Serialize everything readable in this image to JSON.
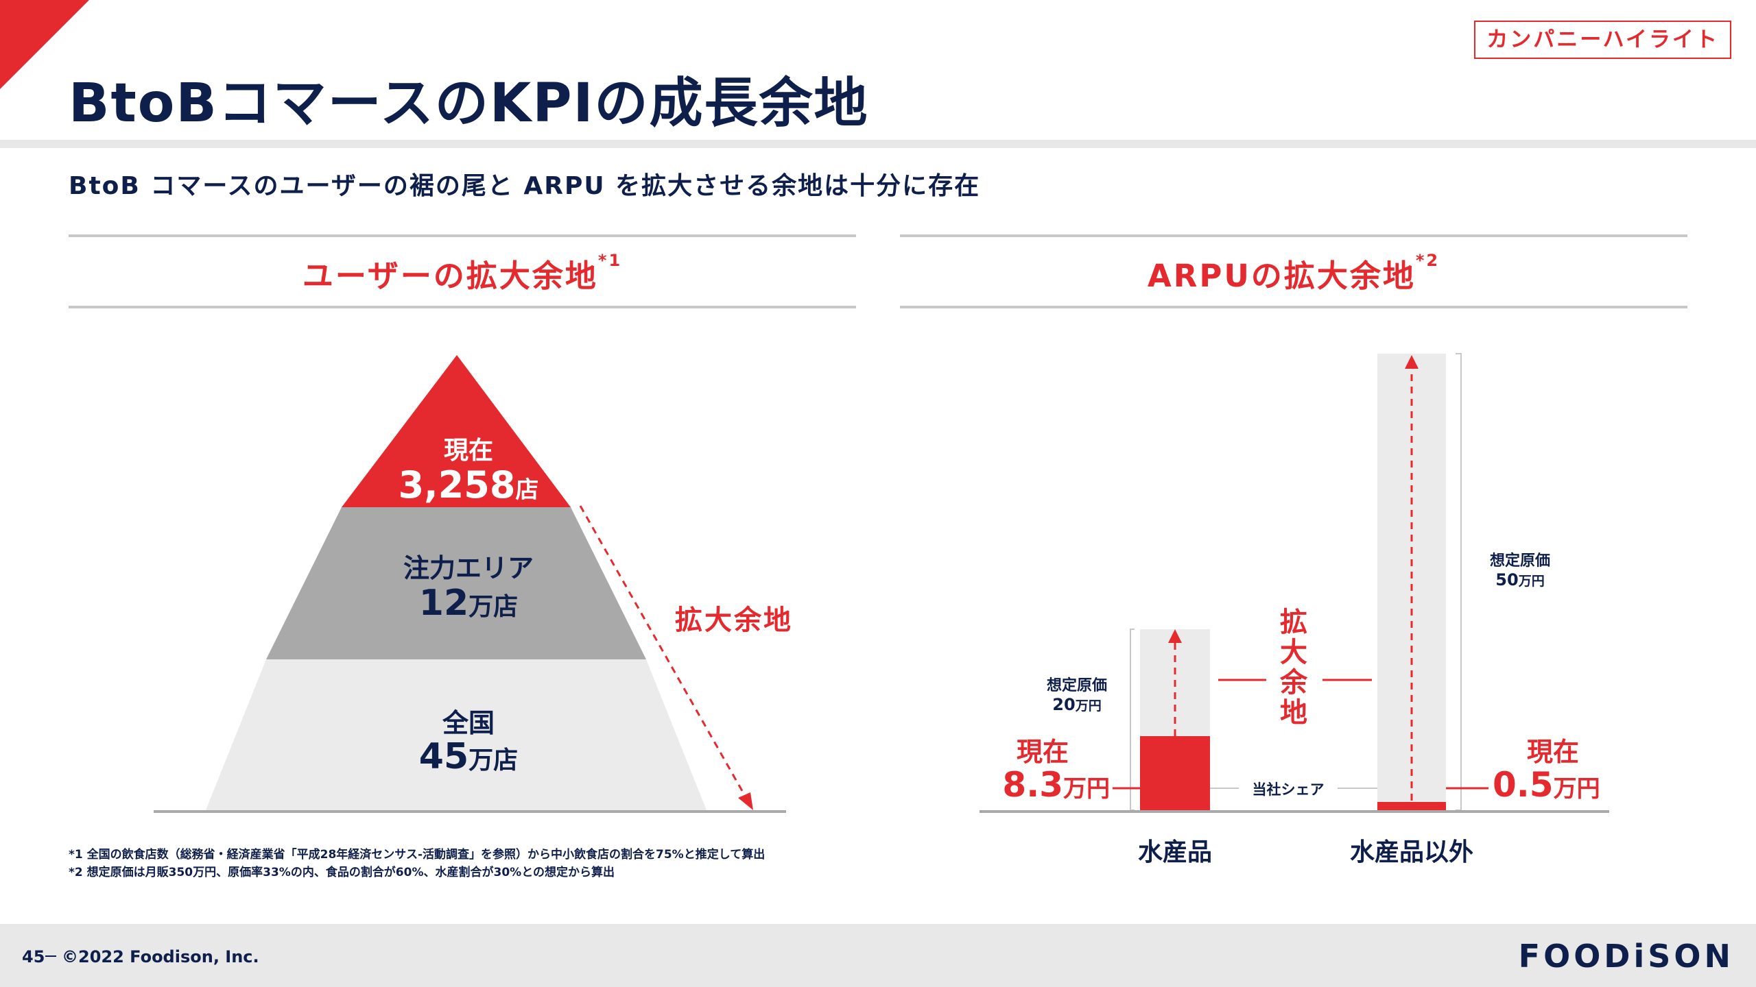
{
  "header": {
    "title": "BtoBコマースのKPIの成長余地",
    "badge": "カンパニーハイライト",
    "subtitle": "BtoB コマースのユーザーの裾の尾と ARPU を拡大させる余地は十分に存在"
  },
  "left": {
    "heading": "ユーザーの拡大余地",
    "heading_note": "*1",
    "tiers": [
      {
        "label": "現在",
        "value": "3,258",
        "unit": "店"
      },
      {
        "label": "注力エリア",
        "value": "12",
        "unit": "万店"
      },
      {
        "label": "全国",
        "value": "45",
        "unit": "万店"
      }
    ],
    "expand_label": "拡大余地"
  },
  "right": {
    "heading": "ARPUの拡大余地",
    "heading_note": "*2",
    "expand_label_chars": [
      "拡",
      "大",
      "余",
      "地"
    ],
    "share_label": "当社シェア",
    "bars": [
      {
        "category": "水産品",
        "assumed_label": "想定原価",
        "assumed_value": "20",
        "assumed_unit": "万円",
        "current_label": "現在",
        "current_value": "8.3",
        "current_unit": "万円"
      },
      {
        "category": "水産品以外",
        "assumed_label": "想定原価",
        "assumed_value": "50",
        "assumed_unit": "万円",
        "current_label": "現在",
        "current_value": "0.5",
        "current_unit": "万円"
      }
    ]
  },
  "notes": [
    "*1 全国の飲食店数（総務省・経済産業省「平成28年経済センサス-活動調査」を参照）から中小飲食店の割合を75%と推定して算出",
    "*2 想定原価は月販350万円、原価率33%の内、食品の割合が60%、水産割合が30%との想定から算出"
  ],
  "footer": {
    "page": "45",
    "copyright": "©2022 Foodison, Inc.",
    "logo": "FOODiSON"
  },
  "colors": {
    "accent": "#e42a2e",
    "navy": "#0f1f4b",
    "gray": "#a9a9a9",
    "light": "#ebebeb"
  }
}
